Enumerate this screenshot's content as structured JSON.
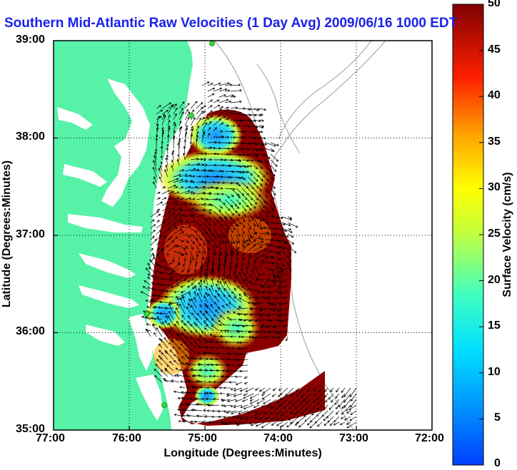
{
  "title": "Southern Mid-Atlantic Raw Velocities (1 Day Avg) 2009/06/16 1000 EDT",
  "xlabel": "Longitude (Degrees:Minutes)",
  "ylabel": "Latitude (Degrees:Minutes)",
  "x_ticks": [
    "77:00",
    "76:00",
    "75:00",
    "74:00",
    "73:00",
    "72:00"
  ],
  "y_ticks": [
    "39:00",
    "38:00",
    "37:00",
    "36:00",
    "35:00"
  ],
  "colorbar": {
    "label": "Surface Velocity (cm/s)",
    "ticks": [
      "50",
      "45",
      "40",
      "35",
      "30",
      "25",
      "20",
      "15",
      "10",
      "5",
      "0"
    ],
    "range": [
      0,
      50
    ],
    "colormap": "jet"
  },
  "colors": {
    "land": "#55f2a8",
    "title": "#1a22e8",
    "bathymetry": "#9a9a9a",
    "vectors": "#000000",
    "stations": "#33dd33"
  },
  "map": {
    "lon_range": [
      -77,
      -72
    ],
    "lat_range": [
      35,
      39
    ],
    "grid": "dotted"
  },
  "chart_data": {
    "type": "heatmap",
    "title": "Southern Mid-Atlantic Raw Velocities (1 Day Avg) 2009/06/16 1000 EDT",
    "xlabel": "Longitude (Degrees:Minutes)",
    "ylabel": "Latitude (Degrees:Minutes)",
    "xlim": [
      -77,
      -72
    ],
    "ylim": [
      35,
      39
    ],
    "zlim": [
      0,
      50
    ],
    "zlabel": "Surface Velocity (cm/s)"
  }
}
